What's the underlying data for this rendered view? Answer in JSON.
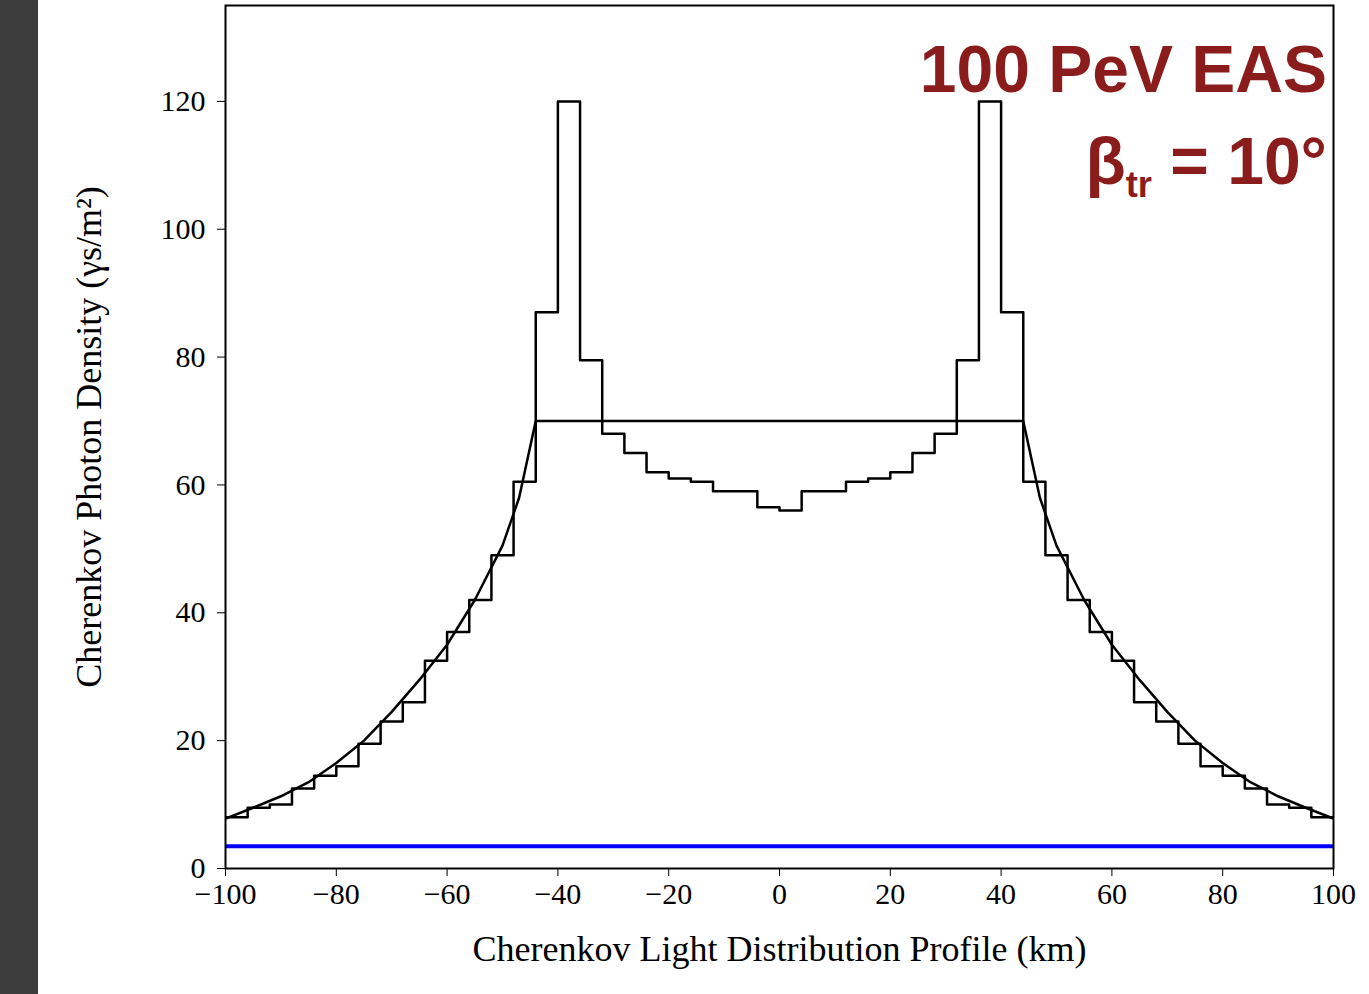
{
  "chart_data": {
    "type": "histogram",
    "x_label": "Cherenkov Light Distribution Profile (km)",
    "y_label": "Cherenkov Photon Density (γs/m²)",
    "annotations": [
      {
        "text": "100 PeV EAS"
      },
      {
        "text": "β",
        "sub": "tr",
        "after": " = 10°"
      }
    ],
    "annotation_color": "#8b1c1c",
    "color": "#000000",
    "bins": [
      -100,
      -96,
      -92,
      -88,
      -84,
      -80,
      -76,
      -72,
      -68,
      -64,
      -60,
      -56,
      -52,
      -48,
      -44,
      -40,
      -36,
      -32,
      -28,
      -24,
      -20,
      -16,
      -12,
      -8,
      -4,
      0,
      4,
      8,
      12,
      16,
      20,
      24,
      28,
      32,
      36,
      40,
      44,
      48,
      52,
      56,
      60,
      64,
      68,
      72,
      76,
      80,
      84,
      88,
      92,
      96,
      100
    ],
    "counts": [
      8,
      9.5,
      10,
      12.5,
      14.5,
      16,
      19.5,
      23,
      26,
      32.5,
      37,
      42,
      49,
      60.5,
      87,
      120,
      79.5,
      68,
      65,
      62,
      61,
      60.5,
      59,
      59,
      56.5,
      56,
      59,
      59,
      60.5,
      61,
      62,
      65,
      68,
      79.5,
      120,
      87,
      60.5,
      49,
      42,
      37,
      32.5,
      26,
      23,
      19.5,
      16,
      14.5,
      12.5,
      10,
      9.5,
      8
    ],
    "series": [
      {
        "type": "line",
        "color": "#000000",
        "x": [
          -100,
          -95,
          -90,
          -85,
          -80,
          -75,
          -70,
          -65,
          -60,
          -55,
          -50,
          -47,
          -44,
          44,
          47,
          50,
          55,
          60,
          65,
          70,
          75,
          80,
          85,
          90,
          95,
          100
        ],
        "values": [
          7.8,
          9.5,
          11.3,
          13.5,
          16.5,
          20,
          24.5,
          29.5,
          35,
          42,
          50.5,
          58,
          70,
          70,
          58,
          50.5,
          42,
          35,
          29.5,
          24.5,
          20,
          16.5,
          13.5,
          11.3,
          9.5,
          7.8
        ]
      },
      {
        "type": "line",
        "color": "#0000ff",
        "x": [
          -100,
          100
        ],
        "values": [
          3.5,
          3.5
        ]
      }
    ],
    "xlim": [
      -100,
      100
    ],
    "xticks": [
      -100,
      -80,
      -60,
      -40,
      -20,
      0,
      20,
      40,
      60,
      80,
      100
    ],
    "ylim": [
      0,
      135
    ],
    "yticks": [
      0,
      20,
      40,
      60,
      80,
      100,
      120
    ],
    "grid": false
  }
}
